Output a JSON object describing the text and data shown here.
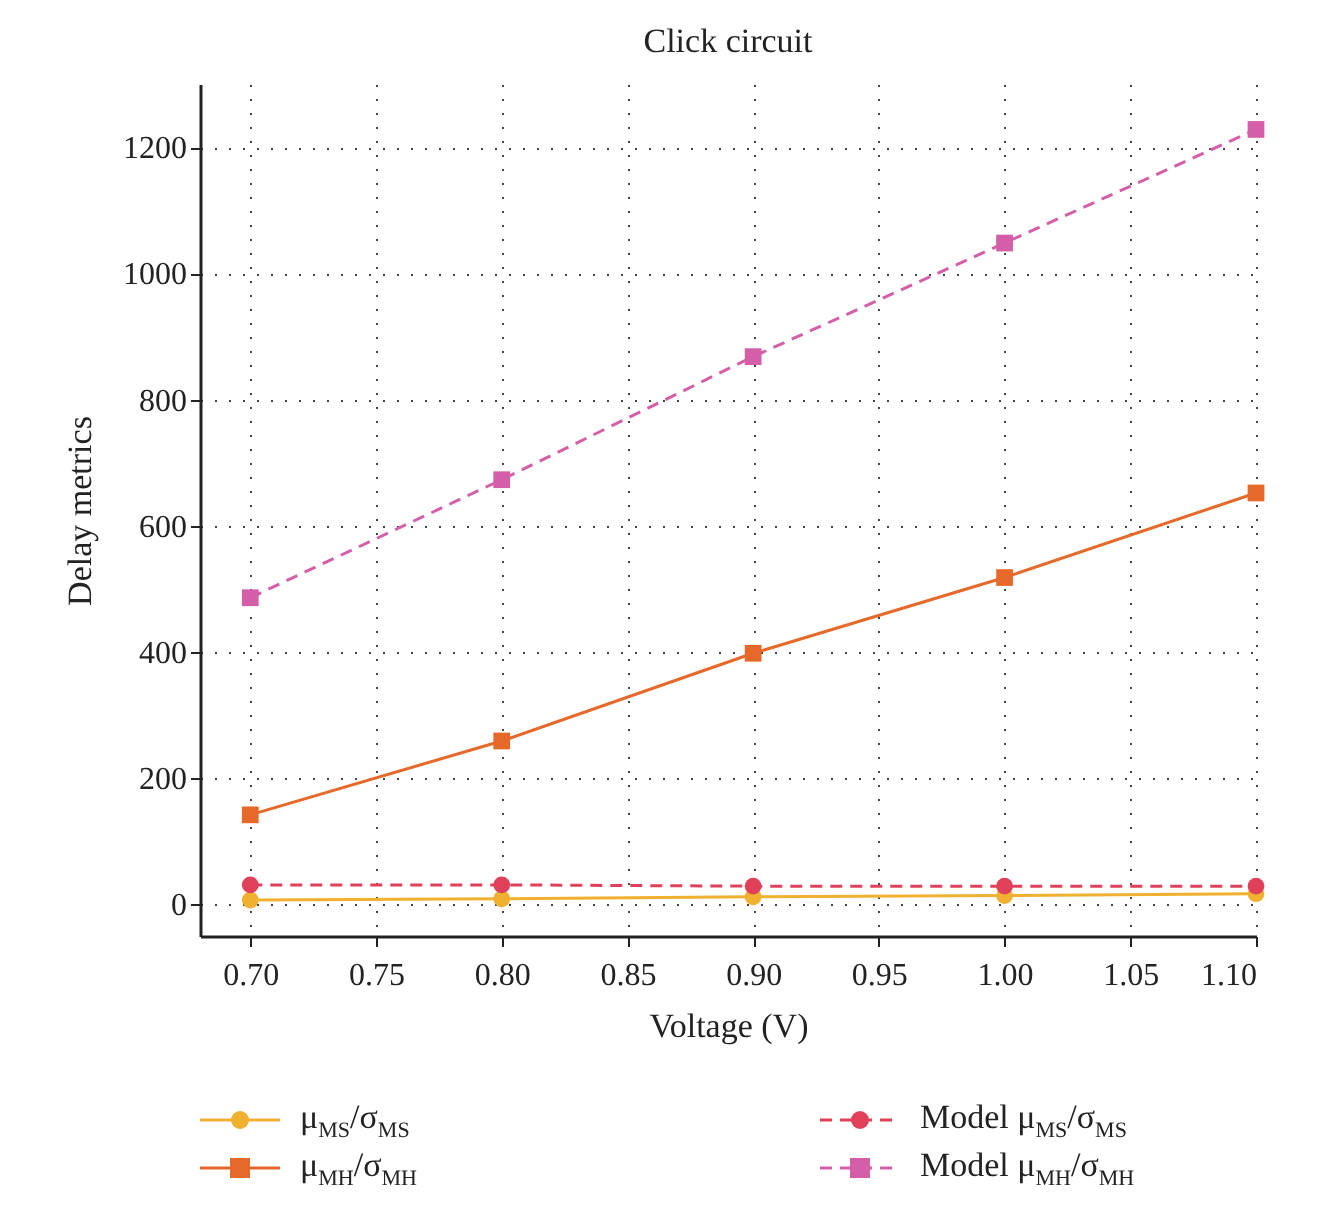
{
  "chart_data": {
    "type": "line",
    "title": "Click circuit",
    "xlabel": "Voltage (V)",
    "ylabel": "Delay  metrics",
    "x": [
      0.7,
      0.8,
      0.9,
      1.0,
      1.1
    ],
    "series": [
      {
        "name": "μ$_{MS}$/σ$_{MS}$",
        "color": "#f0b030",
        "values": [
          7,
          9,
          12,
          14,
          17
        ],
        "marker": "circle",
        "line_style": "solid"
      },
      {
        "name": "μ$_{MH}$/σ$_{MH}$",
        "color": "#e6692a",
        "values": [
          142,
          259,
          398,
          518,
          652
        ],
        "marker": "square",
        "line_style": "solid"
      },
      {
        "name": "Model μ$_{MS}$/σ$_{MS}$",
        "color": "#e0405a",
        "values": [
          31,
          31,
          29,
          29,
          29
        ],
        "marker": "circle",
        "line_style": "dashed"
      },
      {
        "name": "Model μ$_{MH}$/σ$_{MH}$",
        "color": "#d45fa8",
        "values": [
          486,
          673,
          868,
          1048,
          1228
        ],
        "marker": "square",
        "line_style": "dashed"
      }
    ],
    "xlim": [
      0.68,
      1.1
    ],
    "xticks": [
      {
        "value": 0.7,
        "label": "0.70"
      },
      {
        "value": 0.75,
        "label": "0.75"
      },
      {
        "value": 0.8,
        "label": "0.80"
      },
      {
        "value": 0.85,
        "label": "0.85"
      },
      {
        "value": 0.9,
        "label": "0.90"
      },
      {
        "value": 0.95,
        "label": "0.95"
      },
      {
        "value": 1.0,
        "label": "1.00"
      },
      {
        "value": 1.05,
        "label": "1.05"
      },
      {
        "value": 1.1,
        "label": "1.10"
      }
    ],
    "ylim": [
      -50,
      1300
    ],
    "yticks": [
      0,
      200,
      400,
      600,
      800,
      1000,
      1200
    ],
    "grid": true,
    "legend": "bottom"
  }
}
